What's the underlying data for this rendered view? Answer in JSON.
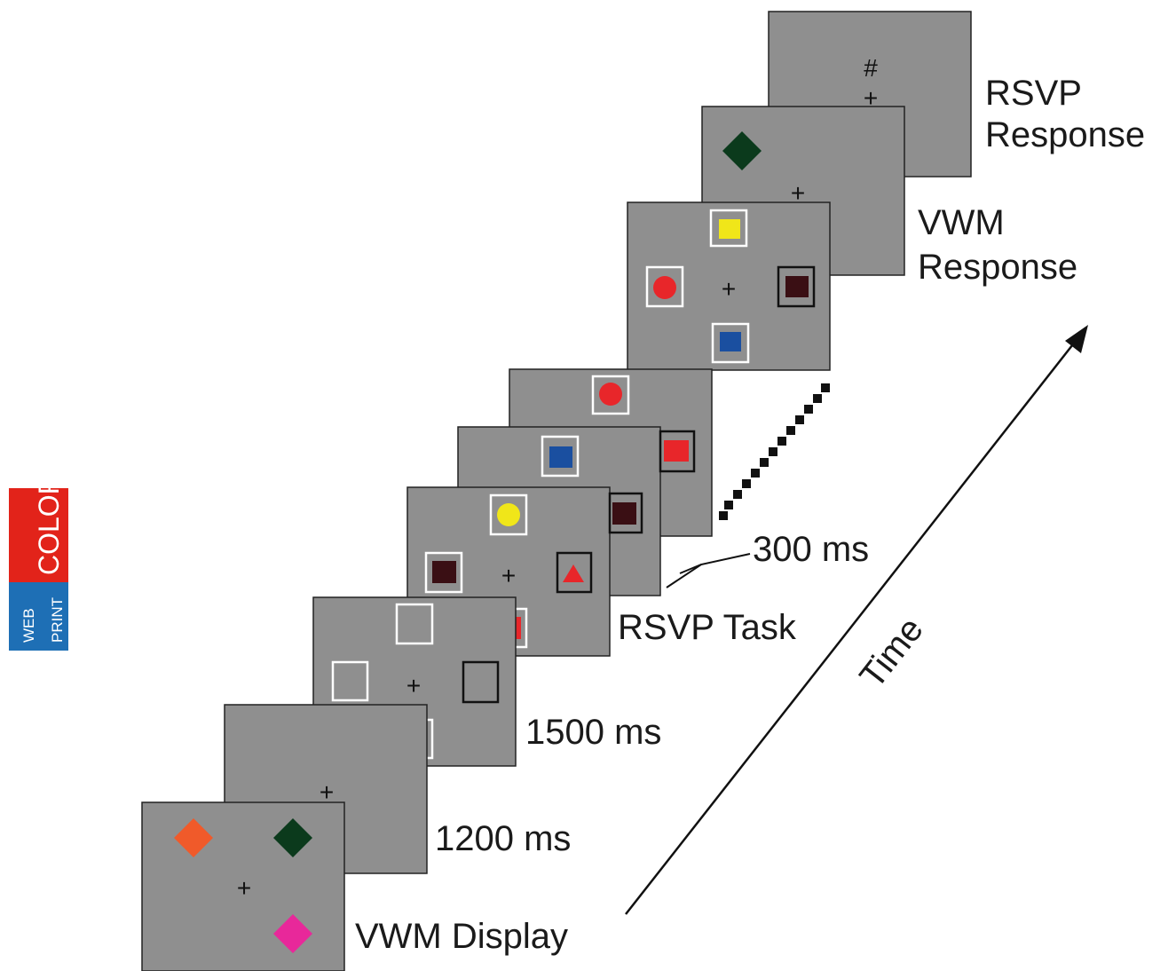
{
  "labels": {
    "rsvp_response_line1": "RSVP",
    "rsvp_response_line2": "Response",
    "vwm_response_line1": "VWM",
    "vwm_response_line2": "Response",
    "ms_300": "300 ms",
    "rsvp_task": "RSVP Task",
    "ms_1500": "1500 ms",
    "ms_1200": "1200 ms",
    "vwm_display": "VWM Display",
    "time": "Time"
  },
  "symbols": {
    "fixation": "+",
    "hash": "#"
  },
  "badge": {
    "top": "COLOR",
    "bottom_line1": "WEB",
    "bottom_line2": "PRINT"
  },
  "colors": {
    "frame_gray": "#8f8f8f",
    "orange": "#f05a2a",
    "dark_green": "#0b3a1c",
    "magenta": "#e8289a",
    "yellow": "#f0e619",
    "blue": "#1a4fa0",
    "red": "#e8262a",
    "dark_maroon": "#3a0f14",
    "badge_red": "#e2231a",
    "badge_blue": "#1e6fb5"
  }
}
